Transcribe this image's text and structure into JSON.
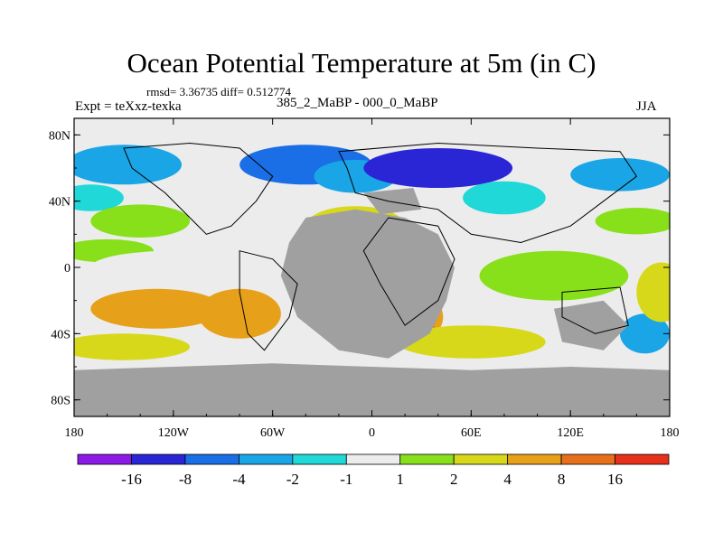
{
  "chart_data": {
    "type": "heatmap",
    "title": "Ocean Potential Temperature at 5m (in C)",
    "stats_line": "rmsd= 3.36735 diff= 0.512774",
    "left_label": "Expt = teXxz-texka",
    "center_label": "385_2_MaBP - 000_0_MaBP",
    "right_label": "JJA",
    "x_ticks": [
      {
        "value": -180,
        "label": "180"
      },
      {
        "value": -120,
        "label": "120W"
      },
      {
        "value": -60,
        "label": "60W"
      },
      {
        "value": 0,
        "label": "0"
      },
      {
        "value": 60,
        "label": "60E"
      },
      {
        "value": 120,
        "label": "120E"
      },
      {
        "value": 180,
        "label": "180"
      }
    ],
    "y_ticks": [
      {
        "value": 80,
        "label": "80N"
      },
      {
        "value": 40,
        "label": "40N"
      },
      {
        "value": 0,
        "label": "0"
      },
      {
        "value": -40,
        "label": "40S"
      },
      {
        "value": -80,
        "label": "80S"
      }
    ],
    "xlim": [
      -180,
      180
    ],
    "ylim": [
      -90,
      90
    ],
    "colorbar": {
      "labels": [
        "-16",
        "-8",
        "-4",
        "-2",
        "-1",
        "1",
        "2",
        "4",
        "8",
        "16"
      ],
      "colors": [
        "#8c1ae6",
        "#2a26d6",
        "#1a6ee6",
        "#1aa6e6",
        "#20d8d8",
        "#ececec",
        "#88e01a",
        "#d8d81a",
        "#e6a01a",
        "#e6701a",
        "#e6301a"
      ]
    },
    "land_color": "#a0a0a0",
    "blobs": [
      {
        "lon": -150,
        "lat": 62,
        "rx": 35,
        "ry": 12,
        "v": -3
      },
      {
        "lon": -170,
        "lat": 42,
        "rx": 20,
        "ry": 8,
        "v": -1.5
      },
      {
        "lon": -140,
        "lat": 28,
        "rx": 30,
        "ry": 10,
        "v": 1.5
      },
      {
        "lon": -160,
        "lat": 10,
        "rx": 28,
        "ry": 7,
        "v": 1.5
      },
      {
        "lon": -120,
        "lat": 0,
        "rx": 50,
        "ry": 10,
        "v": 0.5
      },
      {
        "lon": -130,
        "lat": -25,
        "rx": 40,
        "ry": 12,
        "v": 5
      },
      {
        "lon": -150,
        "lat": -48,
        "rx": 40,
        "ry": 8,
        "v": 2.5
      },
      {
        "lon": -80,
        "lat": -28,
        "rx": 25,
        "ry": 15,
        "v": 4
      },
      {
        "lon": -40,
        "lat": 62,
        "rx": 40,
        "ry": 12,
        "v": -5
      },
      {
        "lon": -10,
        "lat": 55,
        "rx": 25,
        "ry": 10,
        "v": -3
      },
      {
        "lon": 40,
        "lat": 60,
        "rx": 45,
        "ry": 12,
        "v": -10
      },
      {
        "lon": 80,
        "lat": 42,
        "rx": 25,
        "ry": 10,
        "v": -2
      },
      {
        "lon": 150,
        "lat": 56,
        "rx": 30,
        "ry": 10,
        "v": -3
      },
      {
        "lon": 160,
        "lat": 28,
        "rx": 25,
        "ry": 8,
        "v": 1.5
      },
      {
        "lon": -10,
        "lat": 25,
        "rx": 30,
        "ry": 12,
        "v": 3
      },
      {
        "lon": 25,
        "lat": -30,
        "rx": 18,
        "ry": 15,
        "v": 6
      },
      {
        "lon": 30,
        "lat": -40,
        "rx": 10,
        "ry": 7,
        "v": 12
      },
      {
        "lon": 60,
        "lat": -45,
        "rx": 45,
        "ry": 10,
        "v": 3
      },
      {
        "lon": 110,
        "lat": -5,
        "rx": 45,
        "ry": 15,
        "v": 1.5
      },
      {
        "lon": 165,
        "lat": -40,
        "rx": 15,
        "ry": 12,
        "v": -4
      },
      {
        "lon": 175,
        "lat": -15,
        "rx": 15,
        "ry": 18,
        "v": 3
      },
      {
        "lon": -30,
        "lat": -70,
        "rx": 40,
        "ry": 6,
        "v": 0
      }
    ]
  }
}
